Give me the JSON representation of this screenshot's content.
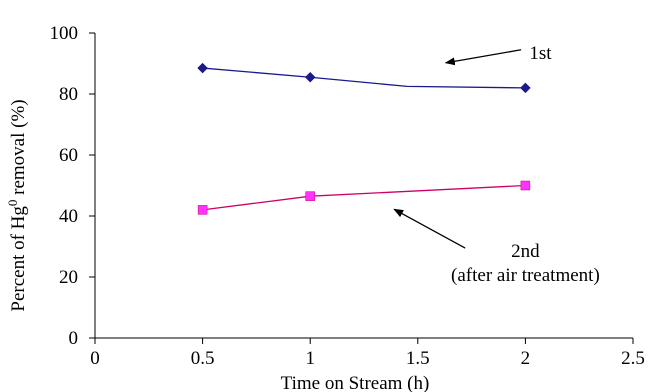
{
  "chart_data": {
    "type": "line",
    "xlabel": "Time on Stream (h)",
    "ylabel_parts": [
      "Percent of Hg",
      "0",
      " removal (%)"
    ],
    "xlim": [
      0,
      2.5
    ],
    "ylim": [
      0,
      100
    ],
    "x_tick_labels": [
      "0",
      "0.5",
      "1",
      "1.5",
      "2",
      "2.5"
    ],
    "x_tick_values": [
      0,
      0.5,
      1,
      1.5,
      2,
      2.5
    ],
    "y_tick_labels": [
      "0",
      "20",
      "40",
      "60",
      "80",
      "100"
    ],
    "y_tick_values": [
      0,
      20,
      40,
      60,
      80,
      100
    ],
    "grid": false,
    "series": [
      {
        "color": "#1a1a8c",
        "marker": "diamond",
        "line_x": [
          0.5,
          1,
          1.45,
          2
        ],
        "line_y": [
          88.5,
          85.5,
          82.5,
          82
        ],
        "x": [
          0.5,
          1,
          2
        ],
        "y": [
          88.5,
          85.5,
          82
        ]
      },
      {
        "color": "#cc0066",
        "marker_color": "#ff33ff",
        "marker": "square",
        "line_x": [
          0.5,
          1,
          2
        ],
        "line_y": [
          42,
          46.5,
          50
        ],
        "x": [
          0.5,
          1,
          2
        ],
        "y": [
          42,
          46.5,
          50
        ]
      }
    ],
    "annotations": [
      {
        "lines": [
          "1st"
        ],
        "text_x": 2.07,
        "text_y": 91.5,
        "arrow_from": [
          1.98,
          94.5
        ],
        "arrow_to": [
          1.63,
          90.2
        ]
      },
      {
        "lines": [
          "2nd",
          "(after air treatment)"
        ],
        "text_x": 2.0,
        "text_y": 26.5,
        "line_spacing": 7.8,
        "arrow_from": [
          1.72,
          29.5
        ],
        "arrow_to": [
          1.39,
          42.2
        ]
      }
    ]
  }
}
